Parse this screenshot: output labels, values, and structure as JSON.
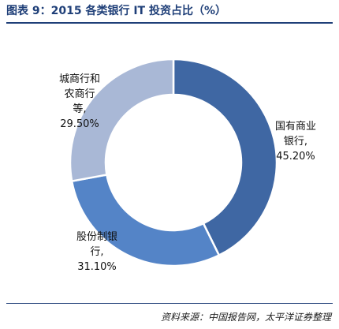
{
  "title": "图表 9：2015 各类银行 IT 投资占比（%）",
  "source": "资料来源：中国报告网，太平洋证券整理",
  "colors": {
    "title": "#1f3f78",
    "state_owned": "#3f67a3",
    "joint_stock": "#5484c7",
    "city_rural": "#a9b8d6"
  },
  "chart_data": {
    "type": "pie",
    "donut": true,
    "categories": [
      "国有商业银行",
      "股份制银行",
      "城商行和农商行等"
    ],
    "values": [
      45.2,
      31.1,
      29.5
    ],
    "units": "%",
    "labels": {
      "state_owned": [
        "国有商业",
        "银行,",
        "45.20%"
      ],
      "joint_stock": [
        "股份制银",
        "行,",
        "31.10%"
      ],
      "city_rural": [
        "城商行和",
        "农商行",
        "等,",
        "29.50%"
      ]
    }
  }
}
